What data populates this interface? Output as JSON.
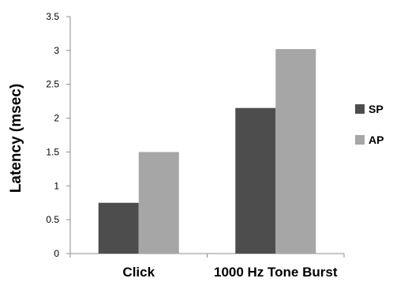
{
  "chart_data": {
    "type": "bar",
    "title": "",
    "xlabel": "",
    "ylabel": "Latency (msec)",
    "categories": [
      "Click",
      "1000 Hz Tone Burst"
    ],
    "series": [
      {
        "name": "SP",
        "values": [
          0.75,
          2.15
        ],
        "color": "#4d4d4d"
      },
      {
        "name": "AP",
        "values": [
          1.5,
          3.02
        ],
        "color": "#a6a6a6"
      }
    ],
    "ylim": [
      0,
      3.5
    ],
    "yticks": [
      "0",
      "0.5",
      "1",
      "1.5",
      "2",
      "2.5",
      "3",
      "3.5"
    ],
    "grid": false,
    "legend_position": "right"
  }
}
